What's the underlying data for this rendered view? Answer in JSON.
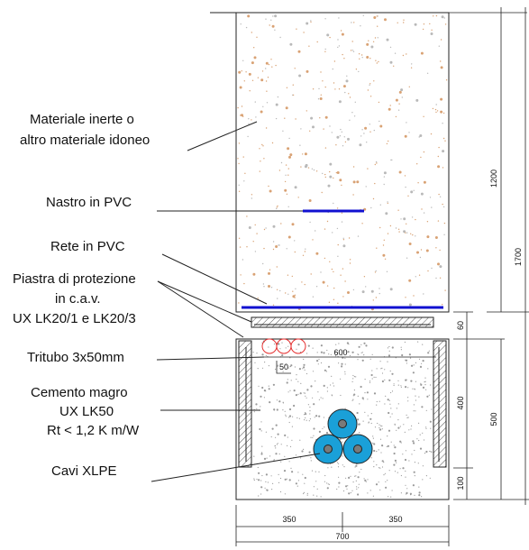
{
  "labels": {
    "fill": [
      "Materiale inerte o",
      "altro materiale idoneo"
    ],
    "tape": "Nastro in PVC",
    "net": "Rete in PVC",
    "plate": [
      "Piastra di protezione",
      "in c.a.v.",
      "UX LK20/1 e LK20/3"
    ],
    "tritubo": "Tritubo 3x50mm",
    "concrete": [
      "Cemento magro",
      "UX LK50",
      "Rt < 1,2 K m/W"
    ],
    "cables": "Cavi XLPE"
  },
  "dimensions": {
    "d1200": "1200",
    "d1700": "1700",
    "d60": "60",
    "d500": "500",
    "d400": "400",
    "d100": "100",
    "d600": "600",
    "d50": "50",
    "d350_left": "350",
    "d350_right": "350",
    "d700": "700"
  },
  "colors": {
    "fill_speckle": "#d9a274",
    "tape": "#1010d0",
    "net": "#1010d0",
    "tritubo": "#e53030",
    "cable": "#1aa0d8",
    "cable_core": "#7a7a7a",
    "concrete_dots": "#9a9a9a"
  }
}
